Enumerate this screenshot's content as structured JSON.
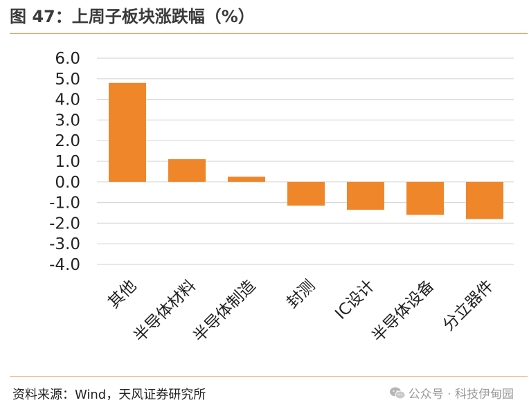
{
  "header": {
    "title": "图 47：上周子板块涨跌幅（%）"
  },
  "footer": {
    "source": "资料来源：Wind，天风证券研究所",
    "watermark": "公众号 · 科技伊甸园",
    "watermark_icon": "wechat-icon"
  },
  "colors": {
    "bar": "#f0862a",
    "rule": "#e8a15a",
    "grid": "#d9d9d9",
    "text": "#222222"
  },
  "chart_data": {
    "type": "bar",
    "title": "",
    "xlabel": "",
    "ylabel": "",
    "categories": [
      "其他",
      "半导体材料",
      "半导体制造",
      "封测",
      "IC设计",
      "半导体设备",
      "分立器件"
    ],
    "values": [
      4.8,
      1.1,
      0.25,
      -1.15,
      -1.35,
      -1.6,
      -1.8
    ],
    "ylim": [
      -4.0,
      6.0
    ],
    "yticks": [
      "6.0",
      "5.0",
      "4.0",
      "3.0",
      "2.0",
      "1.0",
      "0.0",
      "-1.0",
      "-2.0",
      "-3.0",
      "-4.0"
    ],
    "grid": true,
    "legend": "none"
  }
}
